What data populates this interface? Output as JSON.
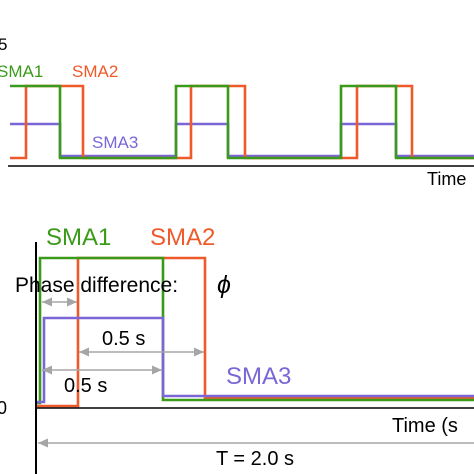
{
  "colors": {
    "sma1": "#3a9a1a",
    "sma2": "#ee5a2a",
    "sma3": "#7a66d6",
    "axis": "#000000",
    "dim": "#a6a6a6"
  },
  "top_panel": {
    "y_tick_partial": "5",
    "legend": {
      "sma1": "SMA1",
      "sma2": "SMA2",
      "sma3": "SMA3"
    },
    "x_axis_label_partial": "Time"
  },
  "bottom_panel": {
    "y_tick_partial": "0",
    "labels": {
      "sma1": "SMA1",
      "sma2": "SMA2",
      "sma3": "SMA3"
    },
    "phase_text": "Phase difference:",
    "phase_symbol": "ϕ",
    "dim_half_upper": "0.5 s",
    "dim_half_lower": "0.5 s",
    "period": "T = 2.0 s",
    "x_axis_label_partial": "Time (s"
  }
}
